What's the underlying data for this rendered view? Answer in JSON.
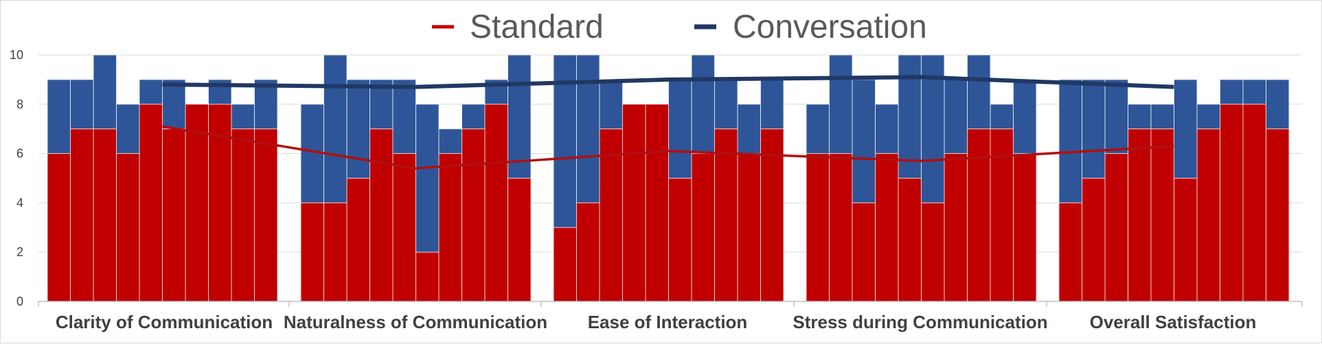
{
  "chart_data": {
    "type": "bar",
    "title": "",
    "xlabel": "",
    "ylabel": "",
    "ylim": [
      0,
      10
    ],
    "yticks": [
      "0",
      "2",
      "4",
      "6",
      "8",
      "10"
    ],
    "grid": "horizontal",
    "legend_position": "top-center",
    "colors": {
      "standard": "#c00000",
      "conversation": "#2e5597",
      "standard_line": "#b01010",
      "conversation_line": "#203864"
    },
    "legend": [
      {
        "name": "Standard",
        "color": "#c00000"
      },
      {
        "name": "Conversation",
        "color": "#203864"
      }
    ],
    "categories": [
      "Clarity of Communication",
      "Naturalness of Communication",
      "Ease of Interaction",
      "Stress during Communication",
      "Overall Satisfaction"
    ],
    "series": [
      {
        "name": "Standard",
        "type": "bar",
        "values": [
          [
            6,
            7,
            7,
            6,
            8,
            7,
            8,
            8,
            7,
            7
          ],
          [
            4,
            4,
            5,
            7,
            6,
            2,
            6,
            7,
            8,
            5
          ],
          [
            3,
            4,
            7,
            8,
            8,
            5,
            6,
            7,
            6,
            7
          ],
          [
            6,
            6,
            4,
            6,
            5,
            4,
            6,
            7,
            7,
            6
          ],
          [
            4,
            5,
            6,
            7,
            7,
            5,
            7,
            8,
            8,
            7
          ]
        ]
      },
      {
        "name": "Conversation",
        "type": "bar",
        "values": [
          [
            9,
            9,
            10,
            8,
            9,
            9,
            8,
            9,
            8,
            9
          ],
          [
            8,
            10,
            9,
            9,
            9,
            8,
            7,
            8,
            9,
            10
          ],
          [
            10,
            10,
            9,
            8,
            8,
            9,
            10,
            9,
            8,
            9
          ],
          [
            8,
            10,
            9,
            8,
            10,
            10,
            9,
            10,
            8,
            9
          ],
          [
            9,
            9,
            9,
            8,
            8,
            9,
            8,
            9,
            9,
            9
          ]
        ]
      },
      {
        "name": "Standard",
        "type": "line",
        "values": [
          7.1,
          5.4,
          6.1,
          5.7,
          6.3
        ]
      },
      {
        "name": "Conversation",
        "type": "line",
        "values": [
          8.8,
          8.7,
          9.0,
          9.1,
          8.7
        ]
      }
    ]
  }
}
